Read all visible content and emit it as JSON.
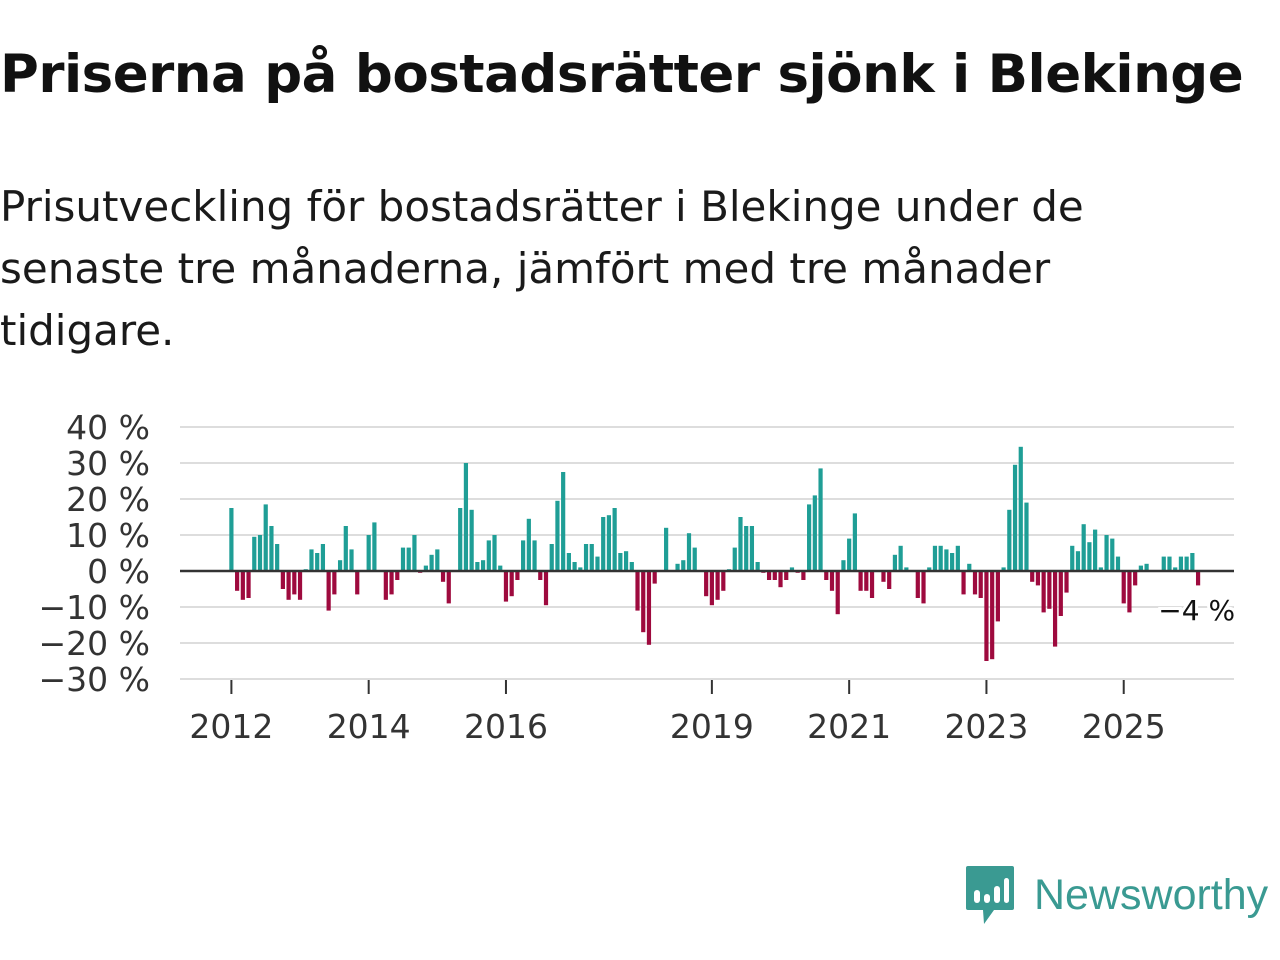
{
  "title": "Priserna på bostadsrätter sjönk i Blekinge",
  "subtitle": "Prisutveckling för bostadsrätter i Blekinge under de senaste tre månaderna, jämfört med tre månader tidigare.",
  "brand": {
    "name": "Newsworthy",
    "color": "#3a9a92"
  },
  "chart_data": {
    "type": "bar",
    "title": "",
    "xlabel": "",
    "ylabel": "",
    "ylim": [
      -30,
      40
    ],
    "yticks": [
      40,
      30,
      20,
      10,
      0,
      -10,
      -20,
      -30
    ],
    "ytick_labels": [
      "40 %",
      "30 %",
      "20 %",
      "10 %",
      "0 %",
      "−10 %",
      "−20 %",
      "−30 %"
    ],
    "x_tick_years": [
      2012,
      2014,
      2016,
      2019,
      2021,
      2023,
      2025
    ],
    "x_tick_labels": [
      "2012",
      "2014",
      "2016",
      "2019",
      "2021",
      "2023",
      "2025"
    ],
    "start": "2012-01",
    "interval": "month",
    "positive_color": "#1f9e96",
    "negative_color": "#9e0a3e",
    "grid": true,
    "last_value_label": "−4 %",
    "values": [
      17.5,
      -5.5,
      -8,
      -7.5,
      9.5,
      10,
      18.5,
      12.5,
      7.5,
      -5,
      -8,
      -6.5,
      -8,
      0.5,
      6,
      5,
      7.5,
      -11,
      -6.5,
      3,
      12.5,
      6,
      -6.5,
      0,
      10,
      13.5,
      0,
      -8,
      -6.5,
      -2.5,
      6.5,
      6.5,
      10,
      -0.5,
      1.5,
      4.5,
      6,
      -3,
      -9,
      0,
      17.5,
      30,
      17,
      2.5,
      3,
      8.5,
      10,
      1.5,
      -8.5,
      -7,
      -2.5,
      8.5,
      14.5,
      8.5,
      -2.5,
      -9.5,
      7.5,
      19.5,
      27.5,
      5,
      2.5,
      1,
      7.5,
      7.5,
      4,
      15,
      15.5,
      17.5,
      5,
      5.5,
      2.5,
      -11,
      -17,
      -20.5,
      -3.5,
      0,
      12,
      0,
      2,
      3,
      10.5,
      6.5,
      0,
      -7,
      -9.5,
      -8,
      -5.5,
      0.5,
      6.5,
      15,
      12.5,
      12.5,
      2.5,
      -0.5,
      -2.5,
      -2.5,
      -4.5,
      -2.5,
      1,
      -0.5,
      -2.5,
      18.5,
      21,
      28.5,
      -2.5,
      -5.5,
      -12,
      3,
      9,
      16,
      -5.5,
      -5.5,
      -7.5,
      0,
      -3,
      -5,
      4.5,
      7,
      1,
      0,
      -7.5,
      -9,
      1,
      7,
      7,
      6,
      5,
      7,
      -6.5,
      2,
      -6.5,
      -7.5,
      -25,
      -24.5,
      -14,
      1,
      17,
      29.5,
      34.5,
      19,
      -3,
      -4,
      -11.5,
      -10.5,
      -21,
      -12.5,
      -6,
      7,
      5.5,
      13,
      8,
      11.5,
      1,
      10,
      9,
      4,
      -9,
      -11.5,
      -4,
      1.5,
      2,
      0,
      0,
      4,
      4,
      1,
      4,
      4,
      5,
      -4
    ]
  }
}
